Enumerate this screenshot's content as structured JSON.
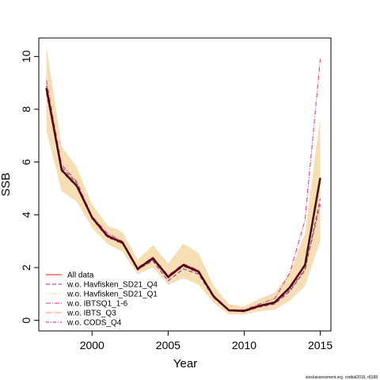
{
  "chart_data": {
    "type": "line",
    "title": "",
    "xlabel": "Year",
    "ylabel": "SSB",
    "xlim": [
      1996.5,
      2015.7
    ],
    "ylim": [
      -0.4,
      10.7
    ],
    "x_ticks": [
      2000,
      2005,
      2010,
      2015
    ],
    "y_ticks": [
      0,
      2,
      4,
      6,
      8,
      10
    ],
    "grid": false,
    "legend_position": "bottom-left",
    "x": [
      1997,
      1998,
      1999,
      2000,
      2001,
      2002,
      2003,
      2004,
      2005,
      2006,
      2007,
      2008,
      2009,
      2010,
      2011,
      2012,
      2013,
      2014,
      2015
    ],
    "band": {
      "color": "#f5deb3",
      "lower": [
        7.2,
        4.9,
        4.5,
        3.5,
        2.9,
        2.6,
        1.75,
        2.0,
        1.35,
        1.6,
        1.35,
        0.65,
        0.22,
        0.22,
        0.35,
        0.4,
        0.75,
        1.3,
        3.0
      ],
      "upper": [
        10.4,
        6.6,
        5.8,
        4.4,
        3.6,
        3.35,
        2.3,
        2.85,
        2.15,
        2.9,
        2.55,
        1.3,
        0.62,
        0.52,
        0.82,
        1.05,
        1.8,
        3.3,
        7.7
      ]
    },
    "main": {
      "color": "#4d0a0a",
      "values": [
        8.8,
        5.7,
        5.1,
        3.9,
        3.2,
        2.95,
        1.95,
        2.35,
        1.65,
        2.1,
        1.85,
        0.9,
        0.38,
        0.36,
        0.55,
        0.68,
        1.25,
        2.1,
        5.4
      ]
    },
    "series": [
      {
        "name": "All data",
        "color": "#e31a1c",
        "dash": "",
        "values": [
          8.8,
          5.7,
          5.1,
          3.9,
          3.2,
          2.95,
          1.95,
          2.35,
          1.65,
          2.1,
          1.85,
          0.9,
          0.38,
          0.36,
          0.55,
          0.68,
          1.25,
          2.1,
          5.4
        ]
      },
      {
        "name": "w.o. Havfisken_SD21_Q4",
        "color": "#7b3294",
        "dash": "5,3",
        "values": [
          8.6,
          5.8,
          5.2,
          3.9,
          3.25,
          2.9,
          1.95,
          2.25,
          1.5,
          1.95,
          1.75,
          0.85,
          0.36,
          0.33,
          0.5,
          0.62,
          1.1,
          1.9,
          4.6
        ]
      },
      {
        "name": "w.o. Havfisken_SD21_Q1",
        "color": "#a6d854",
        "dash": "1,2",
        "values": [
          8.7,
          5.75,
          5.15,
          3.9,
          3.2,
          2.95,
          1.95,
          2.3,
          1.6,
          2.05,
          1.8,
          0.88,
          0.37,
          0.35,
          0.53,
          0.66,
          1.2,
          2.0,
          5.1
        ]
      },
      {
        "name": "w.o. IBTSQ1_1-6",
        "color": "#e7298a",
        "dash": "6,2,1,2",
        "values": [
          9.1,
          5.9,
          5.25,
          3.95,
          3.3,
          3.0,
          2.0,
          2.4,
          1.7,
          2.15,
          1.9,
          0.95,
          0.4,
          0.4,
          0.62,
          0.82,
          1.8,
          3.8,
          9.9
        ]
      },
      {
        "name": "w.o. IBTS_Q3",
        "color": "#fc8d62",
        "dash": "8,3",
        "values": [
          8.75,
          5.7,
          5.1,
          3.9,
          3.2,
          2.95,
          1.95,
          2.3,
          1.6,
          2.05,
          1.8,
          0.88,
          0.37,
          0.35,
          0.54,
          0.67,
          1.2,
          2.05,
          5.2
        ]
      },
      {
        "name": "w.o. CODS_Q4",
        "color": "#c51b7d",
        "dash": "4,2,1,2",
        "values": [
          8.9,
          5.65,
          5.05,
          3.85,
          3.15,
          2.9,
          1.9,
          2.3,
          1.6,
          2.05,
          1.8,
          0.88,
          0.37,
          0.34,
          0.52,
          0.64,
          1.15,
          1.95,
          4.4
        ]
      }
    ]
  },
  "footer": "stockassessment.org, codkat2016, r8188"
}
